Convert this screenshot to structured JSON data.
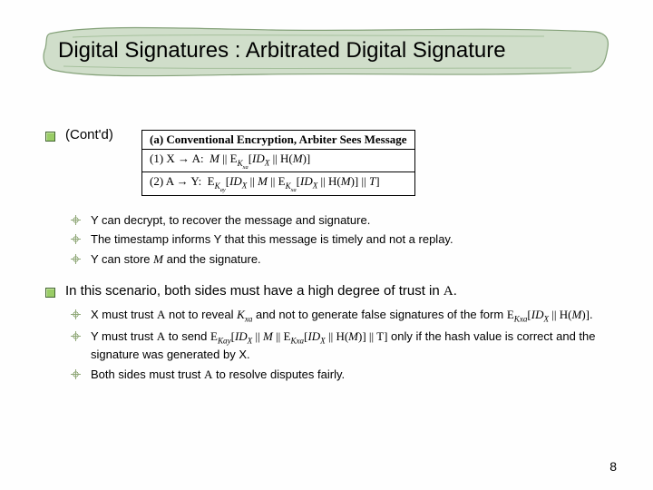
{
  "title": "Digital Signatures : Arbitrated Digital Signature",
  "contd": "(Cont'd)",
  "box": {
    "header": "(a) Conventional Encryption, Arbiter Sees Message",
    "rows_html": [
      "(1) X → A: &nbsp;<span class='it'>M</span> || E<sub><span class='it'>K<sub>xa</sub></span></sub>[<span class='it'>ID<sub>X</sub></span> || H(<span class='it'>M</span>)]",
      "(2) A → Y: &nbsp;E<sub><span class='it'>K<sub>ay</sub></span></sub>[<span class='it'>ID<sub>X</sub></span> || <span class='it'>M</span> || E<sub><span class='it'>K<sub>xa</sub></span></sub>[<span class='it'>ID<sub>X</sub></span> || H(<span class='it'>M</span>)] || <span class='it'>T</span>]"
    ]
  },
  "group1": [
    "Y can decrypt, to recover the message and signature.",
    "The timestamp informs Y that this message is timely and not a replay.",
    "Y can store <span class='serif it'>M</span> and the signature."
  ],
  "scenario": "In this scenario, both sides must have a high degree of trust in <span class='serif'>A</span>.",
  "group2": [
    "X must trust <span class='serif'>A</span> not to reveal <span class='serif it'>K<sub>xa</sub></span> and not to generate false signatures of the form <span class='serif'>E<sub><span class='it'>Kxa</span></sub>[<span class='it'>ID<sub>X</sub></span> || H(<span class='it'>M</span>)]</span>.",
    "Y must trust <span class='serif'>A</span> to send <span class='serif'>E<sub><span class='it'>Kay</span></sub>[<span class='it'>ID<sub>X</sub></span> || <span class='it'>M</span> || E<sub><span class='it'>Kxa</span></sub>[<span class='it'>ID<sub>X</sub></span> || H(<span class='it'>M</span>)] || T]</span> only if the hash value is correct and the signature was generated by X.",
    "Both sides must trust <span class='serif'>A</span> to resolve disputes fairly."
  ],
  "pagenum": "8",
  "colors": {
    "brush_fill": "#c7d9c0",
    "brush_stroke": "#6a8a5a"
  }
}
